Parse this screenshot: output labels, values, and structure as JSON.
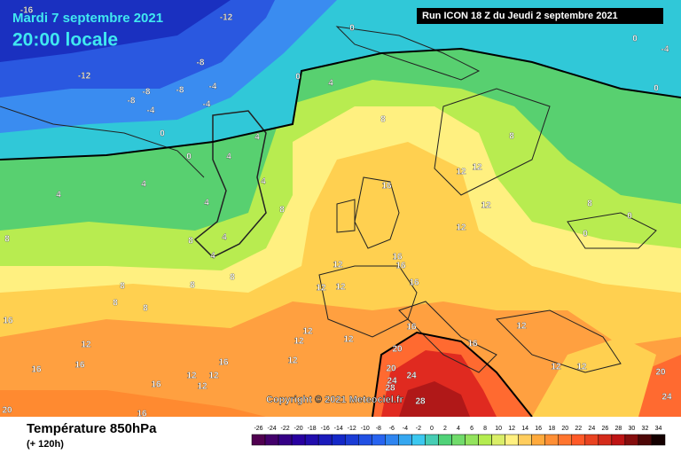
{
  "header": {
    "date": "Mardi 7 septembre 2021",
    "time": "20:00 locale",
    "run": "Run ICON 18 Z du Jeudi 2 septembre 2021"
  },
  "copyright": "Copyright © 2021 Meteociel.fr",
  "legend": {
    "title": "Température 850hPa",
    "lead": "(+ 120h)",
    "scale": [
      -26,
      -24,
      -22,
      -20,
      -18,
      -16,
      -14,
      -12,
      -10,
      -8,
      -6,
      -4,
      -2,
      0,
      2,
      4,
      6,
      8,
      10,
      12,
      14,
      16,
      18,
      20,
      22,
      24,
      26,
      28,
      30,
      32,
      34
    ]
  },
  "contour_labels": [
    -16,
    -12,
    -12,
    -8,
    -8,
    -8,
    -8,
    -4,
    -4,
    -4,
    0,
    0,
    0,
    0,
    -4,
    0,
    0,
    4,
    8,
    4,
    4,
    4,
    4,
    4,
    4,
    8,
    8,
    4,
    4,
    8,
    8,
    8,
    8,
    8,
    8,
    12,
    12,
    16,
    12,
    12,
    16,
    16,
    12,
    12,
    12,
    16,
    12,
    12,
    12,
    16,
    16,
    12,
    20,
    16,
    16,
    12,
    16,
    12,
    12,
    12,
    12,
    20,
    24,
    24,
    28,
    28,
    16,
    16,
    20,
    12,
    12,
    20,
    24,
    0,
    0,
    8,
    16,
    8
  ]
}
